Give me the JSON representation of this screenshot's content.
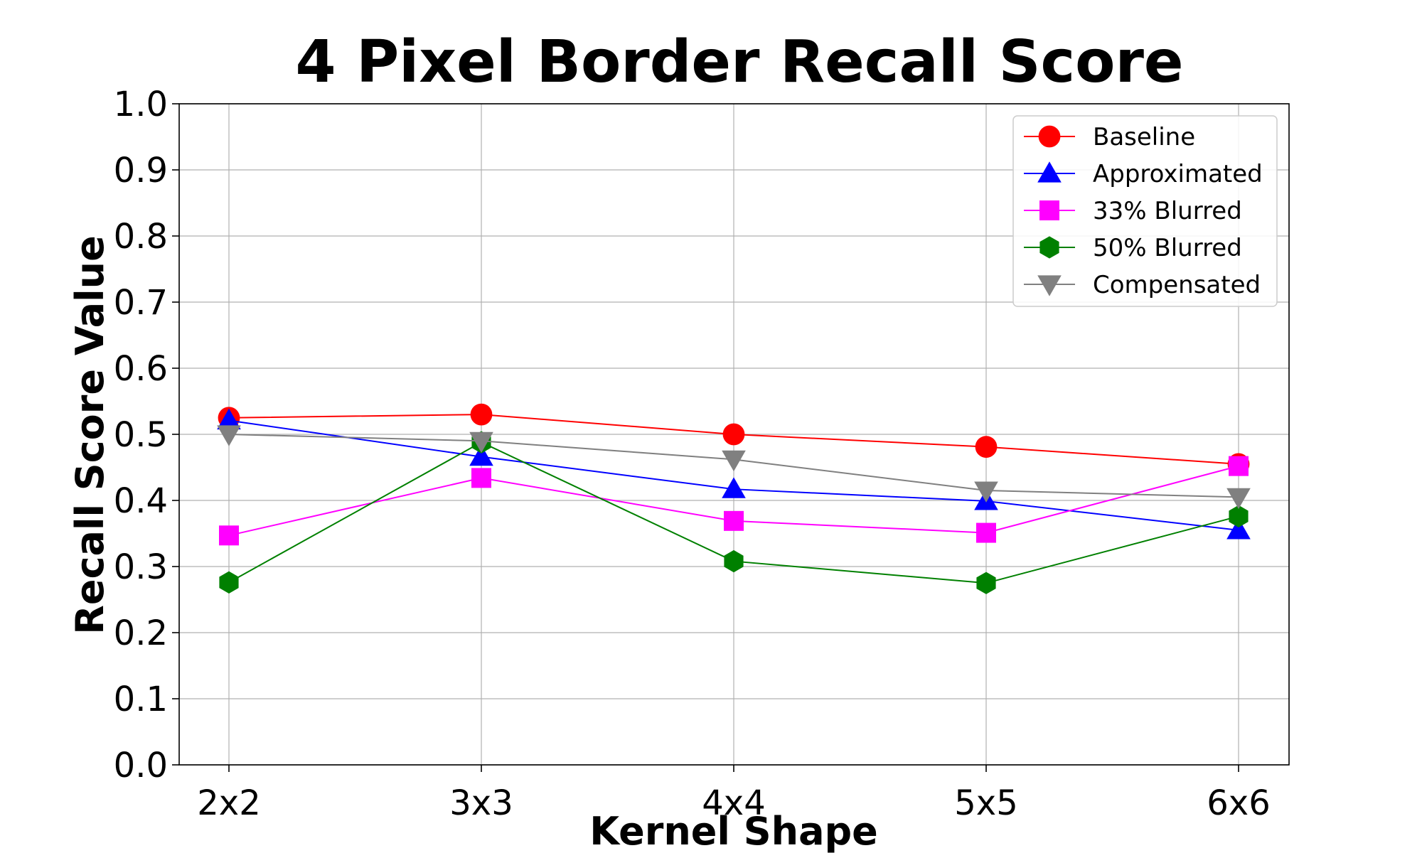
{
  "chart_data": {
    "type": "line",
    "title": "4 Pixel Border Recall Score",
    "xlabel": "Kernel Shape",
    "ylabel": "Recall Score Value",
    "categories": [
      "2x2",
      "3x3",
      "4x4",
      "5x5",
      "6x6"
    ],
    "ylim": [
      0.0,
      1.0
    ],
    "yticks": [
      "0.0",
      "0.1",
      "0.2",
      "0.3",
      "0.4",
      "0.5",
      "0.6",
      "0.7",
      "0.8",
      "0.9",
      "1.0"
    ],
    "grid": true,
    "legend_position": "top-right",
    "series": [
      {
        "name": "Baseline",
        "color": "#ff0000",
        "marker": "circle",
        "values": [
          0.525,
          0.53,
          0.5,
          0.481,
          0.455
        ]
      },
      {
        "name": "Approximated",
        "color": "#0000ff",
        "marker": "triangle-up",
        "values": [
          0.521,
          0.466,
          0.417,
          0.399,
          0.355
        ]
      },
      {
        "name": "33% Blurred",
        "color": "#ff00ff",
        "marker": "square",
        "values": [
          0.347,
          0.434,
          0.369,
          0.351,
          0.452
        ]
      },
      {
        "name": "50% Blurred",
        "color": "#008000",
        "marker": "hexagon",
        "values": [
          0.276,
          0.488,
          0.308,
          0.275,
          0.376
        ]
      },
      {
        "name": "Compensated",
        "color": "#808080",
        "marker": "triangle-down",
        "values": [
          0.5,
          0.49,
          0.462,
          0.415,
          0.405
        ]
      }
    ]
  }
}
